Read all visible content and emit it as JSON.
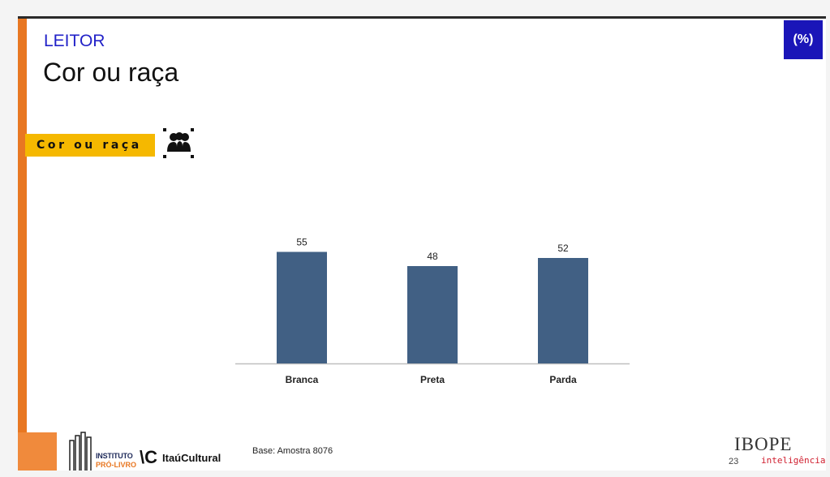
{
  "slide": {
    "section": "LEITOR",
    "title": "Cor ou raça",
    "badge": "(%)",
    "filter_tag": "Cor ou raça",
    "filter_icon": "people-group-icon",
    "base_note": "Base: Amostra 8076",
    "page_number": "23"
  },
  "footer": {
    "logo1_line1": "INSTITUTO",
    "logo1_line2": "PRÓ-LIVRO",
    "logo2_mark": "\\C",
    "logo2_text": "ItaúCultural",
    "logo3_name": "IBOPE",
    "logo3_sub": "inteligência"
  },
  "colors": {
    "accent_orange": "#e87722",
    "badge_blue": "#1a15b8",
    "tag_yellow": "#f5b800",
    "bar": "#416084",
    "section_blue": "#2222c8"
  },
  "chart_data": {
    "type": "bar",
    "categories": [
      "Branca",
      "Preta",
      "Parda"
    ],
    "values": [
      55,
      48,
      52
    ],
    "title": "",
    "xlabel": "",
    "ylabel": "",
    "ylim": [
      0,
      60
    ],
    "grid": false,
    "legend": "none"
  }
}
